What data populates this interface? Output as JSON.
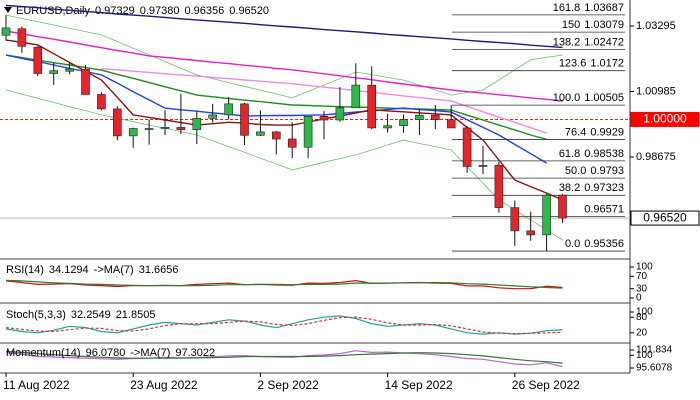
{
  "chart_data": [
    {
      "type": "candlestick",
      "symbol": "EURUSD,Daily",
      "last_bar": {
        "values": [
          0.97329,
          0.9738,
          0.96356,
          0.9652
        ],
        "value_labels": [
          "0.97329",
          "0.97380",
          "0.96356",
          "0.96520"
        ]
      },
      "categories": [
        "11 Aug 2022",
        null,
        null,
        null,
        null,
        null,
        null,
        null,
        "23 Aug 2022",
        null,
        null,
        null,
        null,
        null,
        null,
        null,
        "2 Sep 2022",
        null,
        null,
        null,
        null,
        null,
        null,
        null,
        "14 Sep 2022",
        null,
        null,
        null,
        null,
        null,
        null,
        null,
        "26 Sep 2022",
        null,
        null,
        null
      ],
      "open": [
        1.0297,
        1.032,
        1.0255,
        1.0162,
        1.017,
        1.0177,
        1.0088,
        1.0037,
        0.9942,
        0.9968,
        0.9968,
        0.9972,
        0.9964,
        1.0004,
        1.0016,
        1.0055,
        0.9944,
        0.9956,
        0.9931,
        0.9902,
        1.0011,
        0.9998,
        1.0041,
        1.0121,
        0.997,
        0.9978,
        0.9999,
        1.0015,
        0.9999,
        0.997,
        0.9834,
        0.9838,
        0.9689,
        0.9607,
        0.9593,
        0.97329
      ],
      "high": [
        1.0368,
        1.0328,
        1.026,
        1.02,
        1.0202,
        1.0192,
        1.0096,
        1.0047,
        0.9971,
        0.9999,
        1.0033,
        1.0091,
        1.0028,
        1.0055,
        1.0079,
        1.0058,
        1.0032,
        0.996,
        0.999,
        1.0012,
        1.003,
        1.0114,
        1.0198,
        1.0187,
        1.002,
        1.0017,
        1.0037,
        1.0051,
        1.005,
        0.9977,
        0.9907,
        0.985,
        0.9714,
        0.9675,
        0.974,
        0.9738
      ],
      "low": [
        1.0278,
        1.0235,
        1.0153,
        1.0122,
        1.0159,
        1.0088,
        1.0032,
        0.9926,
        0.99,
        0.9911,
        0.9945,
        0.9948,
        0.9913,
        0.9989,
        1.0,
        0.991,
        0.9941,
        0.9877,
        0.9864,
        0.9864,
        0.9929,
        0.9992,
        1.0041,
        0.9966,
        0.9954,
        0.9953,
        0.9945,
        0.9966,
        0.9971,
        0.9812,
        0.9807,
        0.9671,
        0.9554,
        0.9572,
        0.95356,
        0.96356
      ],
      "close": [
        1.0323,
        1.0258,
        1.0162,
        1.0172,
        1.0178,
        1.0088,
        1.0037,
        0.9942,
        0.9968,
        0.9968,
        0.9972,
        0.9964,
        1.0004,
        1.0016,
        1.0055,
        0.9944,
        0.9956,
        0.9931,
        0.9902,
        1.0011,
        0.9998,
        1.0041,
        1.0121,
        0.997,
        0.9978,
        0.9999,
        1.0015,
        0.9999,
        0.997,
        0.9834,
        0.9838,
        0.9689,
        0.9607,
        0.9593,
        0.9733,
        0.9652
      ],
      "up_color": "#2db84a",
      "down_color": "#e3262b",
      "ylim": [
        0.95112,
        1.04213
      ],
      "yticks": [
        0.98675,
        1.00985,
        1.03295
      ],
      "lines": [
        {
          "color": "#6cc06c",
          "values": [
            1.0368,
            1.0356,
            1.0345,
            1.0333,
            1.0321,
            1.031,
            1.0298,
            1.0275,
            1.0251,
            1.0228,
            1.0204,
            1.0181,
            1.0157,
            1.0144,
            1.013,
            1.0117,
            1.0103,
            1.009,
            1.0076,
            1.0099,
            1.0121,
            1.0144,
            1.0167,
            1.0158,
            1.0148,
            1.0139,
            1.0121,
            1.0104,
            1.0086,
            1.0095,
            1.0104,
            1.0139,
            1.0175,
            1.021,
            1.0219,
            1.0227
          ]
        },
        {
          "color": "#6cc06c",
          "values": [
            1.0104,
            1.0089,
            1.0075,
            1.006,
            1.0045,
            1.0031,
            1.0016,
            1.0004,
            0.9992,
            0.998,
            0.9969,
            0.9957,
            0.9945,
            0.9925,
            0.9904,
            0.9884,
            0.9863,
            0.9843,
            0.9822,
            0.9835,
            0.9849,
            0.9862,
            0.9875,
            0.9892,
            0.991,
            0.9927,
            0.9915,
            0.9904,
            0.9892,
            0.9833,
            0.9775,
            0.9716,
            0.9681,
            0.9646,
            0.961,
            0.9575
          ]
        },
        {
          "color": "#1a1a7a",
          "values": [
            1.0402,
            1.0398,
            1.0394,
            1.0389,
            1.0385,
            1.0381,
            1.0377,
            1.0372,
            1.0368,
            1.0364,
            1.036,
            1.0355,
            1.0351,
            1.0347,
            1.0343,
            1.0339,
            1.0334,
            1.033,
            1.0326,
            1.0322,
            1.0317,
            1.0313,
            1.0309,
            1.0305,
            1.03,
            1.0296,
            1.0292,
            1.0288,
            1.0284,
            1.0279,
            1.0275,
            1.0271,
            1.0267,
            1.0262,
            1.0258,
            1.0254
          ]
        },
        {
          "color": "#e020c8",
          "values": [
            1.0312,
            1.0302,
            1.0292,
            1.0283,
            1.0273,
            1.0263,
            1.0253,
            1.0243,
            1.0234,
            1.0224,
            1.0219,
            1.0213,
            1.0208,
            1.0202,
            1.0197,
            1.0191,
            1.0186,
            1.018,
            1.0175,
            1.0168,
            1.0161,
            1.0154,
            1.0147,
            1.014,
            1.0132,
            1.0125,
            1.0118,
            1.0111,
            1.0104,
            1.0098,
            1.0093,
            1.0087,
            1.0082,
            1.0076,
            1.0071,
            1.0065
          ]
        },
        {
          "color": "#f08ae0",
          "values": [
            null,
            null,
            null,
            null,
            null,
            null,
            1.0179,
            1.0175,
            1.017,
            1.0166,
            1.0161,
            1.0157,
            1.0153,
            1.0148,
            1.0144,
            1.0139,
            1.0135,
            1.013,
            1.0126,
            1.012,
            1.0114,
            1.0108,
            1.0102,
            1.0096,
            1.0089,
            1.0083,
            1.0077,
            1.0071,
            1.0065,
            1.0046,
            1.0027,
            1.0008,
            0.999,
            0.9971,
            0.9952,
            null
          ]
        },
        {
          "color": "#1e8c1e",
          "values": [
            1.0227,
            1.0218,
            1.0209,
            1.02,
            1.0192,
            1.0183,
            1.0174,
            1.0159,
            1.0145,
            1.013,
            1.0115,
            1.0101,
            1.0086,
            1.008,
            1.0074,
            1.0068,
            1.0063,
            1.0057,
            1.0051,
            1.0049,
            1.0047,
            1.0045,
            1.0044,
            1.0042,
            1.004,
            1.0038,
            1.0037,
            1.0035,
            1.0033,
            1.0015,
            0.9998,
            0.998,
            0.9963,
            0.9945,
            0.993,
            null
          ]
        },
        {
          "color": "#2040e0",
          "values": [
            1.0227,
            1.0215,
            1.0204,
            1.0192,
            1.018,
            1.0169,
            1.0157,
            1.0128,
            1.0098,
            1.0069,
            1.004,
            1.0034,
            1.0029,
            1.0023,
            1.0018,
            1.0012,
            1.0013,
            1.0014,
            1.0014,
            1.0015,
            1.0016,
            1.0021,
            1.0026,
            1.003,
            1.0035,
            1.004,
            1.0035,
            1.0031,
            1.0026,
            0.9999,
            0.9972,
            0.9945,
            0.9912,
            0.9879,
            0.9846,
            null
          ]
        },
        {
          "color": "#8b1010",
          "values": [
            1.028,
            1.0272,
            1.0263,
            1.0232,
            1.0201,
            1.017,
            1.0139,
            1.0078,
            1.0016,
            1.0007,
            0.9998,
            0.9989,
            0.998,
            0.9985,
            0.999,
            0.9987,
            0.9982,
            0.998,
            0.998,
            0.9991,
            1.0002,
            1.0012,
            1.0023,
            1.0034,
            1.003,
            1.0027,
            1.0023,
            1.002,
            1.0016,
            0.9972,
            0.9927,
            0.9857,
            0.9786,
            0.9763,
            0.974,
            0.9716
          ]
        }
      ],
      "reference_lines": [
        {
          "value": 0.9652,
          "label": "0.96520",
          "color": "#aaaaaa",
          "box": "#ffffff",
          "text_color": "#000000"
        },
        {
          "value": 1,
          "label": "1.00000",
          "color": "#e00000",
          "box": "#ff0000",
          "text_color": "#ffffff",
          "dashed": true
        }
      ],
      "fib_levels": [
        {
          "ratio": "161.8",
          "price": 1.03687
        },
        {
          "ratio": "150",
          "price": 1.03079
        },
        {
          "ratio": "138.2",
          "price": 1.02472
        },
        {
          "ratio": "123.6",
          "price": 1.0172
        },
        {
          "ratio": "100.0",
          "price": 1.00505
        },
        {
          "ratio": "76.4",
          "price": 0.9929
        },
        {
          "ratio": "61.8",
          "price": 0.98538
        },
        {
          "ratio": "50.0",
          "price": 0.9793
        },
        {
          "ratio": "38.2",
          "price": 0.97323
        },
        {
          "ratio": null,
          "price": 0.96571
        },
        {
          "ratio": "0.0",
          "price": 0.95356
        }
      ]
    },
    {
      "type": "line",
      "label_parts": [
        "RSI(14)",
        34.1294,
        "->MA(7)",
        31.6656
      ],
      "ylim": [
        0,
        100
      ],
      "yticks": [
        100,
        70,
        30,
        0
      ],
      "series": [
        {
          "color": "#d01010",
          "values": [
            55,
            50,
            44,
            45,
            46,
            42,
            40,
            37,
            40,
            40,
            41,
            40,
            44,
            46,
            48,
            43,
            44,
            42,
            41,
            48,
            47,
            50,
            56,
            47,
            48,
            49,
            50,
            48,
            47,
            39,
            39,
            33,
            30,
            30,
            38,
            34.1294
          ]
        },
        {
          "color": "#2e7d32",
          "values": [
            57,
            55,
            52,
            49,
            47,
            45,
            44,
            42,
            41,
            40,
            40,
            40,
            40,
            41,
            43,
            43,
            44,
            44,
            43,
            44,
            44,
            45,
            48,
            48,
            48,
            49,
            49,
            50,
            49,
            46,
            45,
            42,
            39,
            36,
            34,
            31.6656
          ]
        }
      ]
    },
    {
      "type": "line",
      "label_parts": [
        "Stoch(5,3,3)",
        32.2549,
        21.8505
      ],
      "ylim": [
        0,
        100
      ],
      "yticks": [
        100,
        80,
        20
      ],
      "series": [
        {
          "color": "#20a0a0",
          "values": [
            35,
            25,
            20,
            30,
            45,
            40,
            25,
            20,
            35,
            50,
            60,
            55,
            50,
            60,
            70,
            65,
            50,
            40,
            55,
            70,
            80,
            85,
            75,
            55,
            45,
            50,
            55,
            50,
            35,
            20,
            15,
            20,
            15,
            18,
            28,
            32.2549
          ]
        },
        {
          "color": "#e03030",
          "dashed": true,
          "values": [
            40,
            33,
            27,
            25,
            32,
            38,
            37,
            28,
            27,
            35,
            48,
            55,
            55,
            55,
            60,
            65,
            62,
            52,
            48,
            55,
            68,
            78,
            80,
            72,
            58,
            50,
            50,
            52,
            47,
            35,
            23,
            18,
            17,
            18,
            20,
            21.8505
          ]
        }
      ]
    },
    {
      "type": "line",
      "label_parts": [
        "Momentum(14)",
        {
          "value": 96.078,
          "label": "96.0780"
        },
        "->MA(7)",
        97.3022
      ],
      "ylim": [
        95.6078,
        101.834
      ],
      "yticks": [
        101.834,
        100,
        95.6078
      ],
      "series": [
        {
          "color": "#c060d0",
          "values": [
            100.9,
            100.4,
            99.6,
            99.4,
            99.2,
            99.0,
            98.8,
            98.6,
            98.9,
            99.0,
            99.3,
            99.1,
            99.2,
            99.5,
            99.8,
            99.9,
            99.6,
            99.4,
            99.3,
            99.9,
            100.1,
            100.6,
            101.6,
            101.0,
            101.1,
            100.8,
            100.6,
            100.2,
            99.6,
            98.9,
            98.6,
            97.8,
            97.0,
            96.7,
            97.4,
            96.078
          ]
        },
        {
          "color": "#2e7d32",
          "values": [
            101.3,
            101.0,
            100.6,
            100.2,
            99.9,
            99.6,
            99.3,
            99.1,
            99.0,
            99.0,
            99.0,
            99.0,
            99.1,
            99.2,
            99.3,
            99.5,
            99.6,
            99.6,
            99.6,
            99.6,
            99.7,
            99.9,
            100.2,
            100.4,
            100.6,
            100.8,
            100.9,
            100.8,
            100.6,
            100.2,
            99.8,
            99.2,
            98.6,
            98.1,
            97.8,
            97.3022
          ]
        }
      ]
    }
  ]
}
